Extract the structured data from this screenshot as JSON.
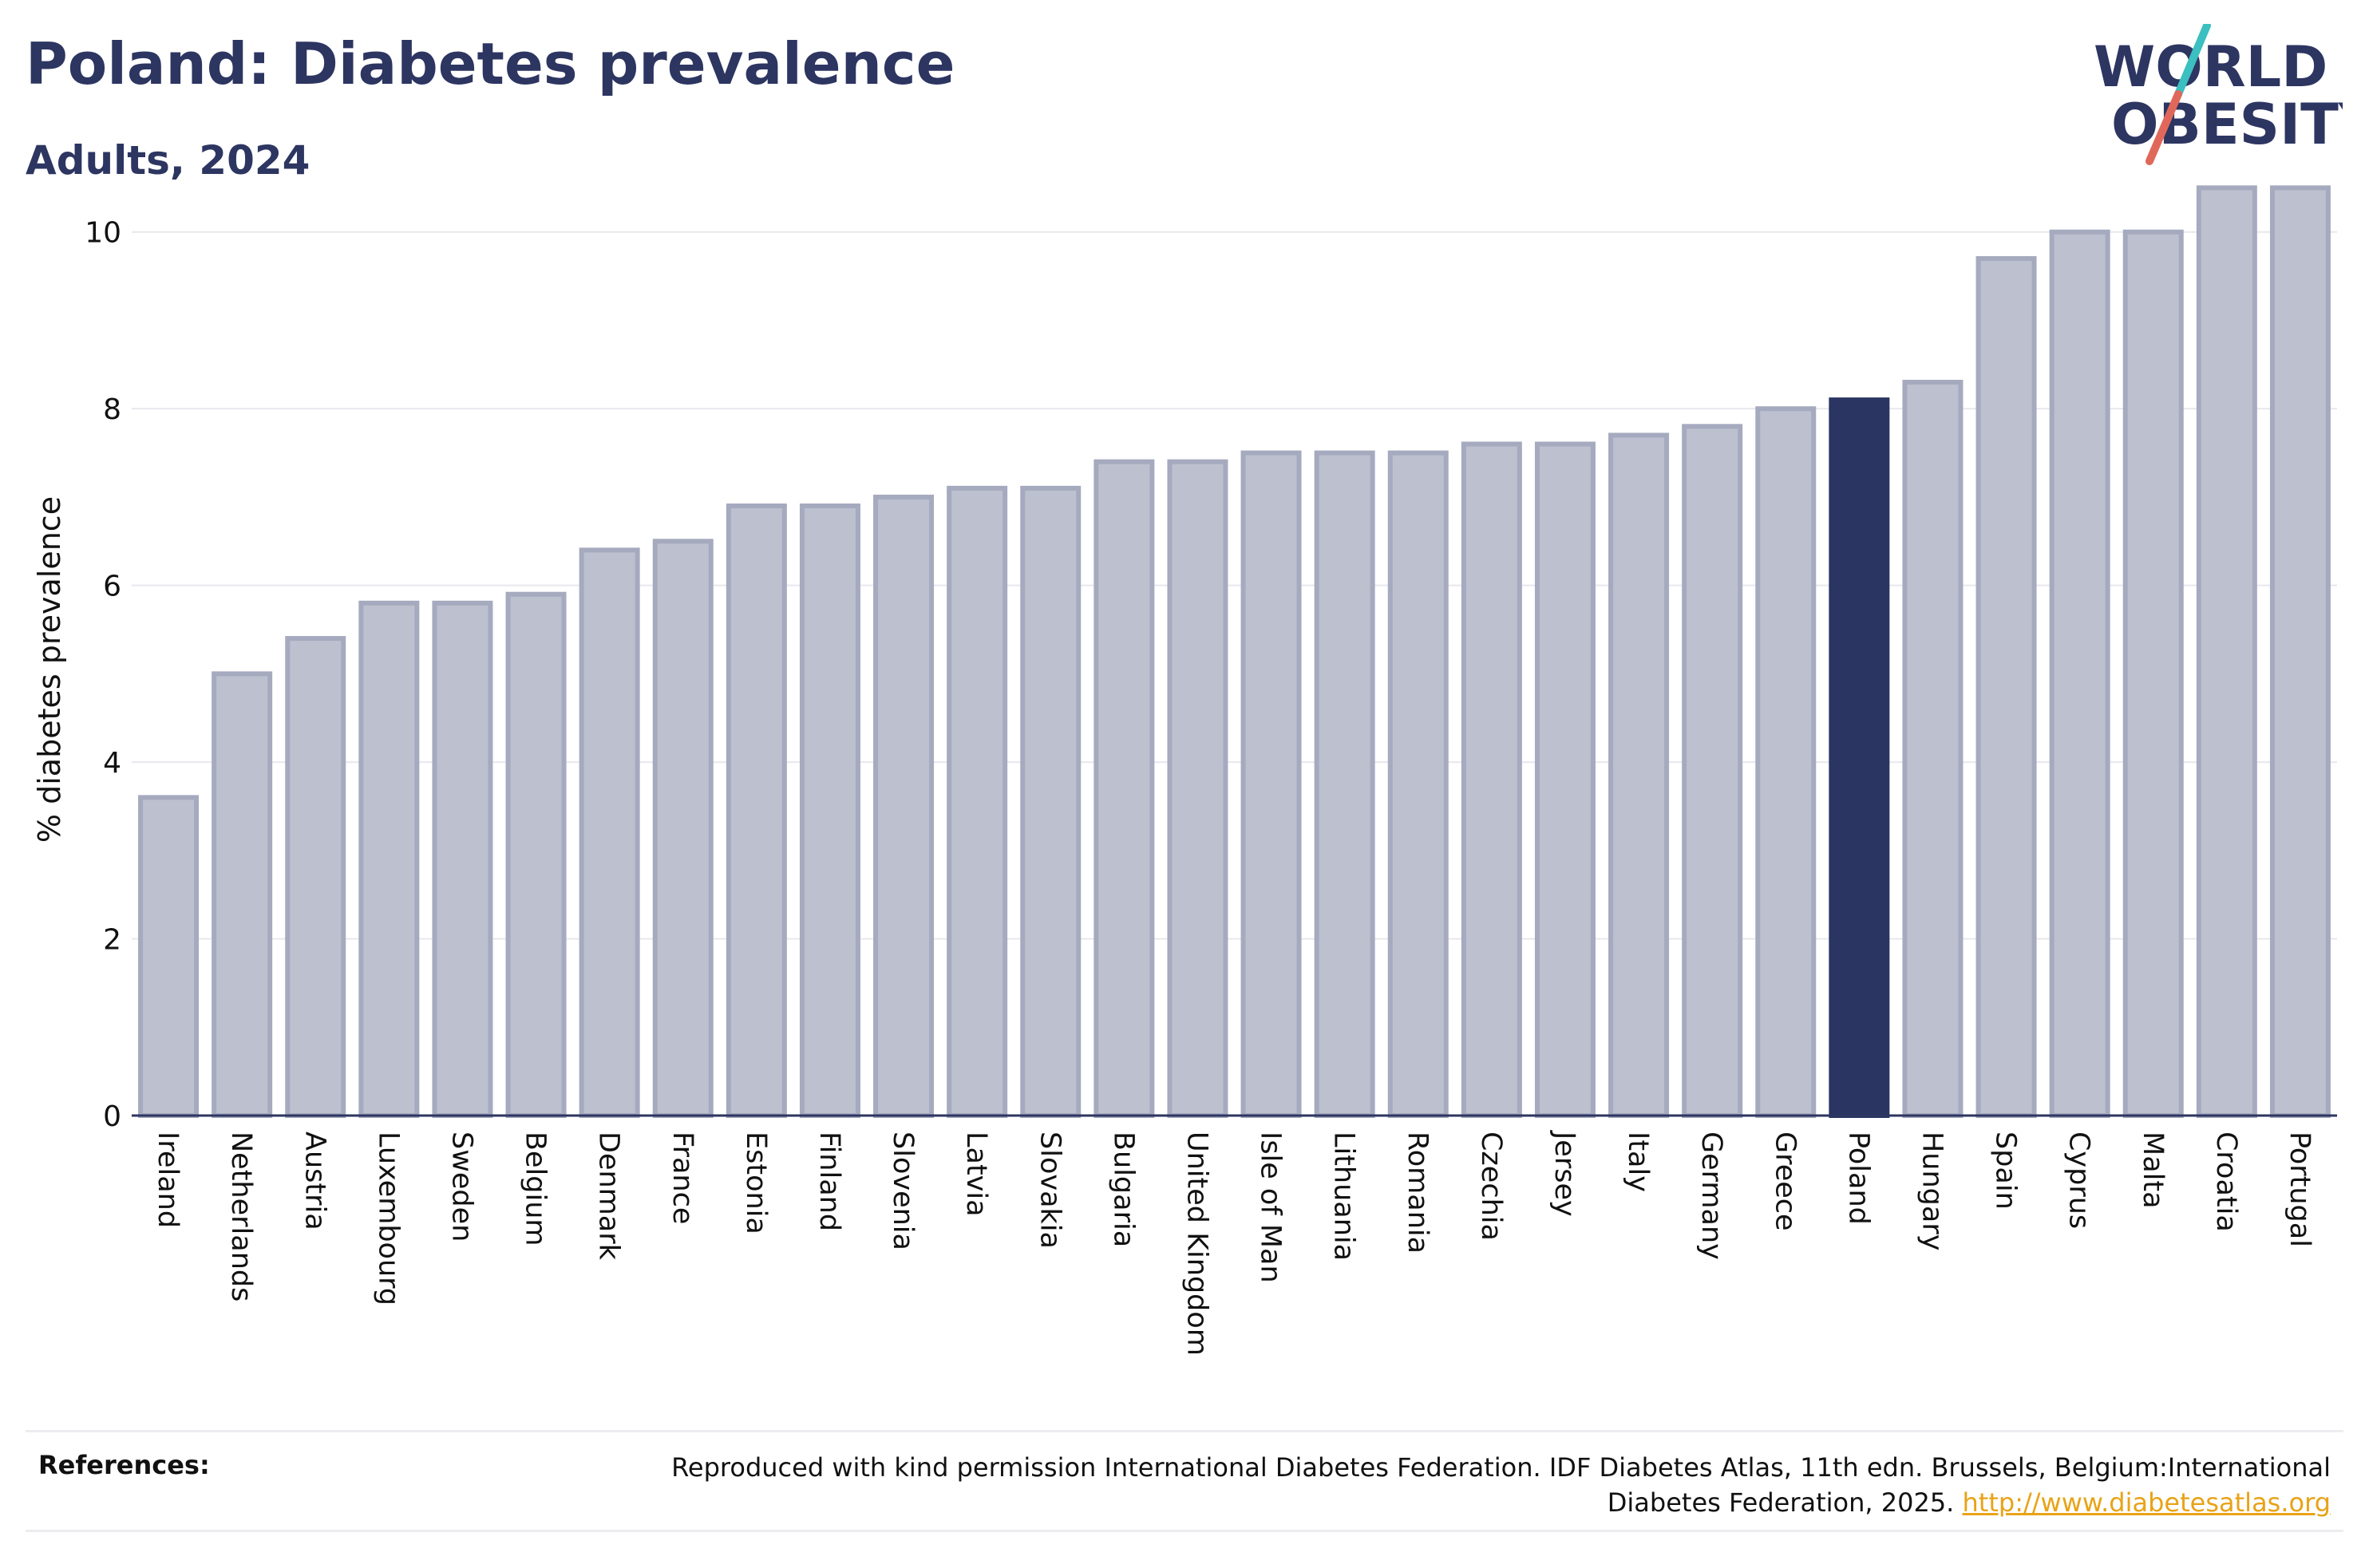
{
  "header": {
    "title": "Poland: Diabetes prevalence",
    "subtitle": "Adults, 2024"
  },
  "logo": {
    "line1": "WORLD",
    "line2": "OBESITY",
    "colors": {
      "text": "#2d3561",
      "slash_teal": "#3bbfc0",
      "slash_coral": "#e0685a"
    }
  },
  "chart_data": {
    "type": "bar",
    "ylabel": "% diabetes prevalence",
    "xlabel": "",
    "ylim": [
      0,
      11
    ],
    "yticks": [
      0,
      2,
      4,
      6,
      8,
      10
    ],
    "grid": true,
    "highlight": "Poland",
    "colors": {
      "bar": "#bdc0cf",
      "bar_edge": "#a6aabf",
      "highlight": "#2b3562",
      "grid": "#e8e8ee",
      "axis": "#2d3561"
    },
    "categories": [
      "Ireland",
      "Netherlands",
      "Austria",
      "Luxembourg",
      "Sweden",
      "Belgium",
      "Denmark",
      "France",
      "Estonia",
      "Finland",
      "Slovenia",
      "Latvia",
      "Slovakia",
      "Bulgaria",
      "United Kingdom",
      "Isle of Man",
      "Lithuania",
      "Romania",
      "Czechia",
      "Jersey",
      "Italy",
      "Germany",
      "Greece",
      "Poland",
      "Hungary",
      "Spain",
      "Cyprus",
      "Malta",
      "Croatia",
      "Portugal"
    ],
    "values": [
      3.6,
      5.0,
      5.4,
      5.8,
      5.8,
      5.9,
      6.4,
      6.5,
      6.9,
      6.9,
      7.0,
      7.1,
      7.1,
      7.4,
      7.4,
      7.5,
      7.5,
      7.5,
      7.6,
      7.6,
      7.7,
      7.8,
      8.0,
      8.1,
      8.3,
      9.7,
      10.0,
      10.0,
      10.5,
      10.5
    ]
  },
  "references": {
    "label": "References:",
    "text": "Reproduced with kind permission International Diabetes Federation. IDF Diabetes Atlas, 11th edn. Brussels, Belgium:International Diabetes Federation, 2025. ",
    "link_text": "http://www.diabetesatlas.org"
  }
}
